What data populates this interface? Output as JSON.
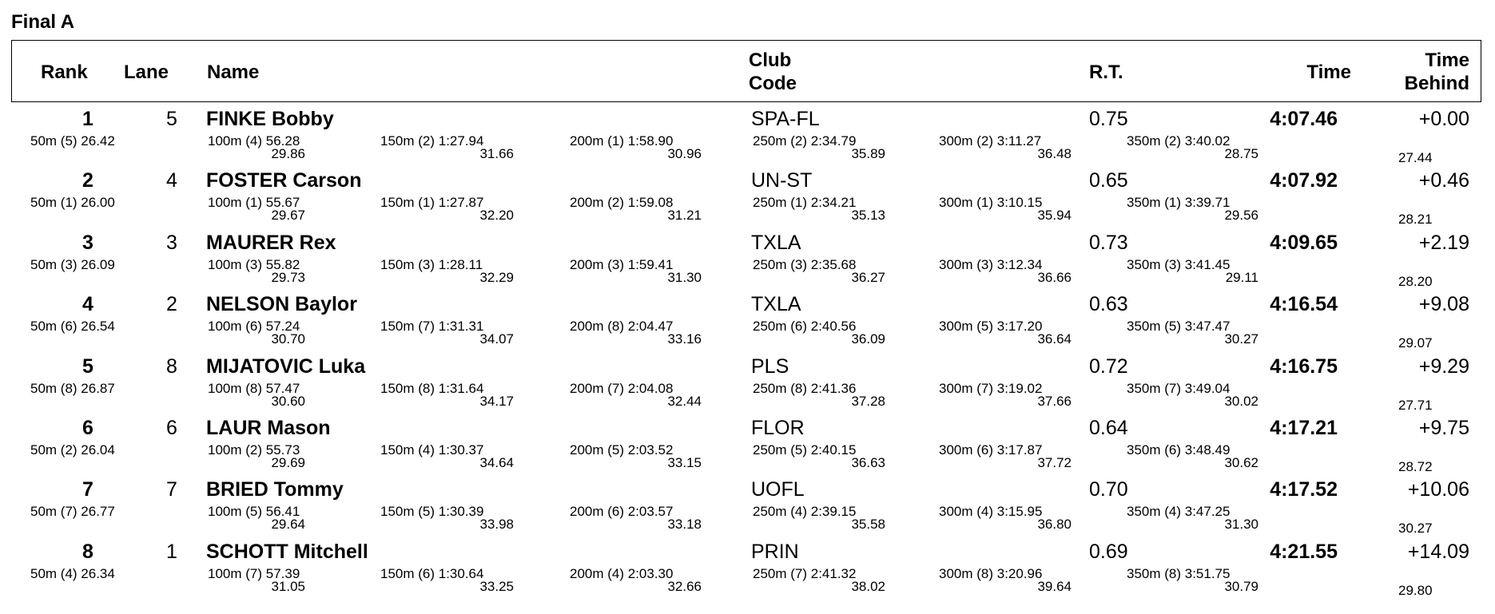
{
  "title": "Final A",
  "headers": {
    "rank": "Rank",
    "lane": "Lane",
    "name": "Name",
    "club_l1": "Club",
    "club_l2": "Code",
    "rt": "R.T.",
    "time": "Time",
    "tb_l1": "Time",
    "tb_l2": "Behind"
  },
  "rows": [
    {
      "rank": "1",
      "lane": "5",
      "name": "FINKE Bobby",
      "club": "SPA-FL",
      "rt": "0.75",
      "time": "4:07.46",
      "behind": "+0.00",
      "s50": "50m  (5) 26.42",
      "s100": "100m  (4) 56.28",
      "d100": "29.86",
      "s150": "150m  (2) 1:27.94",
      "d150": "31.66",
      "s200": "200m  (1) 1:58.90",
      "d200": "30.96",
      "s250": "250m  (2) 2:34.79",
      "d250": "35.89",
      "s300": "300m  (2) 3:11.27",
      "d300": "36.48",
      "s350": "350m  (2) 3:40.02",
      "d350": "28.75",
      "d400": "27.44"
    },
    {
      "rank": "2",
      "lane": "4",
      "name": "FOSTER Carson",
      "club": "UN-ST",
      "rt": "0.65",
      "time": "4:07.92",
      "behind": "+0.46",
      "s50": "50m  (1) 26.00",
      "s100": "100m  (1) 55.67",
      "d100": "29.67",
      "s150": "150m  (1) 1:27.87",
      "d150": "32.20",
      "s200": "200m  (2) 1:59.08",
      "d200": "31.21",
      "s250": "250m  (1) 2:34.21",
      "d250": "35.13",
      "s300": "300m  (1) 3:10.15",
      "d300": "35.94",
      "s350": "350m  (1) 3:39.71",
      "d350": "29.56",
      "d400": "28.21"
    },
    {
      "rank": "3",
      "lane": "3",
      "name": "MAURER Rex",
      "club": "TXLA",
      "rt": "0.73",
      "time": "4:09.65",
      "behind": "+2.19",
      "s50": "50m  (3) 26.09",
      "s100": "100m  (3) 55.82",
      "d100": "29.73",
      "s150": "150m  (3) 1:28.11",
      "d150": "32.29",
      "s200": "200m  (3) 1:59.41",
      "d200": "31.30",
      "s250": "250m  (3) 2:35.68",
      "d250": "36.27",
      "s300": "300m  (3) 3:12.34",
      "d300": "36.66",
      "s350": "350m  (3) 3:41.45",
      "d350": "29.11",
      "d400": "28.20"
    },
    {
      "rank": "4",
      "lane": "2",
      "name": "NELSON Baylor",
      "club": "TXLA",
      "rt": "0.63",
      "time": "4:16.54",
      "behind": "+9.08",
      "s50": "50m  (6) 26.54",
      "s100": "100m  (6) 57.24",
      "d100": "30.70",
      "s150": "150m  (7) 1:31.31",
      "d150": "34.07",
      "s200": "200m  (8) 2:04.47",
      "d200": "33.16",
      "s250": "250m  (6) 2:40.56",
      "d250": "36.09",
      "s300": "300m  (5) 3:17.20",
      "d300": "36.64",
      "s350": "350m  (5) 3:47.47",
      "d350": "30.27",
      "d400": "29.07"
    },
    {
      "rank": "5",
      "lane": "8",
      "name": "MIJATOVIC Luka",
      "club": "PLS",
      "rt": "0.72",
      "time": "4:16.75",
      "behind": "+9.29",
      "s50": "50m  (8) 26.87",
      "s100": "100m  (8) 57.47",
      "d100": "30.60",
      "s150": "150m  (8) 1:31.64",
      "d150": "34.17",
      "s200": "200m  (7) 2:04.08",
      "d200": "32.44",
      "s250": "250m  (8) 2:41.36",
      "d250": "37.28",
      "s300": "300m  (7) 3:19.02",
      "d300": "37.66",
      "s350": "350m  (7) 3:49.04",
      "d350": "30.02",
      "d400": "27.71"
    },
    {
      "rank": "6",
      "lane": "6",
      "name": "LAUR Mason",
      "club": "FLOR",
      "rt": "0.64",
      "time": "4:17.21",
      "behind": "+9.75",
      "s50": "50m  (2) 26.04",
      "s100": "100m  (2) 55.73",
      "d100": "29.69",
      "s150": "150m  (4) 1:30.37",
      "d150": "34.64",
      "s200": "200m  (5) 2:03.52",
      "d200": "33.15",
      "s250": "250m  (5) 2:40.15",
      "d250": "36.63",
      "s300": "300m  (6) 3:17.87",
      "d300": "37.72",
      "s350": "350m  (6) 3:48.49",
      "d350": "30.62",
      "d400": "28.72"
    },
    {
      "rank": "7",
      "lane": "7",
      "name": "BRIED Tommy",
      "club": "UOFL",
      "rt": "0.70",
      "time": "4:17.52",
      "behind": "+10.06",
      "s50": "50m  (7) 26.77",
      "s100": "100m  (5) 56.41",
      "d100": "29.64",
      "s150": "150m  (5) 1:30.39",
      "d150": "33.98",
      "s200": "200m  (6) 2:03.57",
      "d200": "33.18",
      "s250": "250m  (4) 2:39.15",
      "d250": "35.58",
      "s300": "300m  (4) 3:15.95",
      "d300": "36.80",
      "s350": "350m  (4) 3:47.25",
      "d350": "31.30",
      "d400": "30.27"
    },
    {
      "rank": "8",
      "lane": "1",
      "name": "SCHOTT Mitchell",
      "club": "PRIN",
      "rt": "0.69",
      "time": "4:21.55",
      "behind": "+14.09",
      "s50": "50m  (4) 26.34",
      "s100": "100m  (7) 57.39",
      "d100": "31.05",
      "s150": "150m  (6) 1:30.64",
      "d150": "33.25",
      "s200": "200m  (4) 2:03.30",
      "d200": "32.66",
      "s250": "250m  (7) 2:41.32",
      "d250": "38.02",
      "s300": "300m  (8) 3:20.96",
      "d300": "39.64",
      "s350": "350m  (8) 3:51.75",
      "d350": "30.79",
      "d400": "29.80"
    }
  ]
}
